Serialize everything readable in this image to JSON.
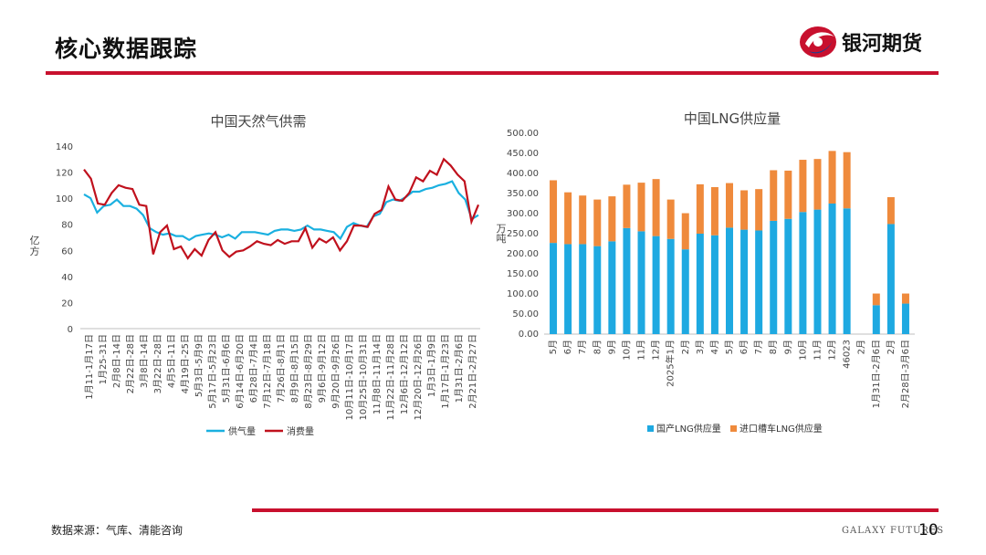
{
  "header": {
    "title": "核心数据跟踪",
    "brand_name": "银河期货"
  },
  "footer": {
    "source": "数据来源：气库、清能咨询",
    "brand_en": "GALAXY FUTURES",
    "page_number": "10"
  },
  "colors": {
    "accent_red": "#c8102e",
    "supply_line": "#1ab0e0",
    "consumption_line": "#c0111d",
    "domestic_bar": "#1ea9e1",
    "import_bar": "#ef8a3c"
  },
  "chart_data": [
    {
      "type": "line",
      "title": "中国天然气供需",
      "ylabel": "亿方",
      "ylim": [
        0,
        140
      ],
      "yticks": [
        "0",
        "20",
        "40",
        "60",
        "80",
        "100",
        "120",
        "140"
      ],
      "grid": false,
      "legend": "bottom",
      "x_labels": [
        "1月11-1月17日",
        "1月25-31日",
        "2月8日-14日",
        "2月22日-28日",
        "3月8日-14日",
        "3月22日-28日",
        "4月5日-11日",
        "4月19日-25日",
        "5月3日-5月9日",
        "5月17日-5月23日",
        "5月31日-6月6日",
        "6月14日-6月20日",
        "6月28日-7月4日",
        "7月12日-7月18日",
        "7月26日-8月1日",
        "8月9日-8月15日",
        "8月23日-8月29日",
        "9月6日-9月12日",
        "9月20日-9月26日",
        "10月11日-10月17日",
        "10月25日-10月31日",
        "11月8日-11月14日",
        "11月22日-11月28日",
        "12月6日-12月12日",
        "12月20日-12月26日",
        "1月3日-1月9日",
        "1月17日-1月23日",
        "1月31日-2月6日",
        "2月21日-2月27日"
      ],
      "series": [
        {
          "name": "供气量",
          "values": [
            103,
            100,
            89,
            94,
            95,
            99,
            94,
            94,
            92,
            87,
            77,
            74,
            72,
            73,
            71,
            71,
            68,
            71,
            72,
            73,
            72,
            70,
            72,
            69,
            74,
            74,
            74,
            73,
            72,
            75,
            76,
            76,
            75,
            76,
            79,
            76,
            76,
            75,
            74,
            69,
            78,
            81,
            79,
            78,
            86,
            88,
            97,
            99,
            98,
            101,
            105,
            105,
            107,
            108,
            110,
            111,
            113,
            104,
            99,
            84,
            87
          ]
        },
        {
          "name": "消费量",
          "values": [
            122,
            115,
            96,
            95,
            104,
            110,
            108,
            107,
            95,
            94,
            57,
            74,
            79,
            61,
            63,
            54,
            61,
            56,
            68,
            74,
            60,
            55,
            59,
            60,
            63,
            67,
            65,
            64,
            68,
            65,
            67,
            67,
            77,
            62,
            69,
            66,
            70,
            60,
            67,
            79,
            79,
            78,
            88,
            91,
            109,
            99,
            98,
            104,
            116,
            113,
            121,
            118,
            130,
            125,
            118,
            113,
            82,
            95
          ]
        }
      ]
    },
    {
      "type": "bar",
      "stacked": true,
      "title": "中国LNG供应量",
      "ylabel": "万吨",
      "ylim": [
        0,
        500
      ],
      "yticks": [
        "0.00",
        "50.00",
        "100.00",
        "150.00",
        "200.00",
        "250.00",
        "300.00",
        "350.00",
        "400.00",
        "450.00",
        "500.00"
      ],
      "grid": false,
      "legend": "bottom",
      "categories": [
        "5月",
        "6月",
        "7月",
        "8月",
        "9月",
        "10月",
        "11月",
        "12月",
        "2025年1月",
        "2月",
        "3月",
        "4月",
        "5月",
        "6月",
        "7月",
        "8月",
        "9月",
        "10月",
        "11月",
        "12月",
        "46023",
        "2月",
        "1月31日-2月6日",
        "2月",
        "2月28日-3月6日"
      ],
      "series": [
        {
          "name": "国产LNG供应量",
          "values": [
            227,
            224,
            224,
            219,
            231,
            264,
            256,
            244,
            237,
            211,
            250,
            246,
            265,
            260,
            258,
            282,
            287,
            304,
            310,
            325,
            313,
            "",
            72,
            274,
            76
          ]
        },
        {
          "name": "进口槽车LNG供应量",
          "values": [
            156,
            129,
            121,
            116,
            112,
            108,
            121,
            142,
            98,
            90,
            123,
            120,
            111,
            98,
            103,
            126,
            120,
            130,
            126,
            131,
            140,
            "",
            29,
            67,
            25
          ]
        }
      ]
    }
  ]
}
